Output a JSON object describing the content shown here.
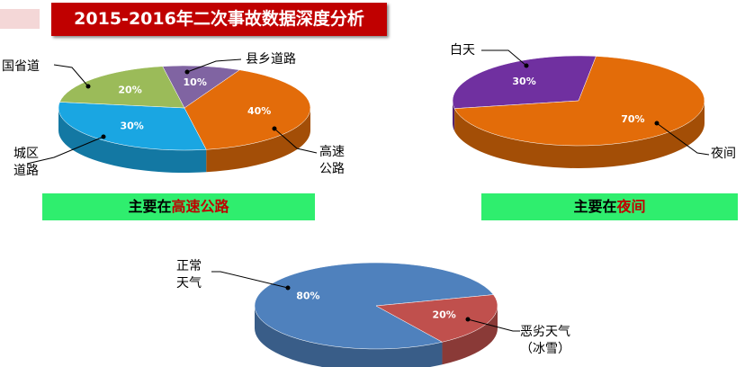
{
  "title": "2015-2016年二次事故数据深度分析",
  "chart_data": [
    {
      "type": "pie",
      "categories": [
        "城区道路",
        "国省道",
        "县乡道路",
        "高速公路"
      ],
      "values": [
        30,
        20,
        10,
        40
      ],
      "value_labels": [
        "30%",
        "20%",
        "10%",
        "40%"
      ],
      "colors": [
        "#1aa6e2",
        "#9bbb59",
        "#8064a2",
        "#e36c0a"
      ]
    },
    {
      "type": "pie",
      "categories": [
        "白天",
        "夜间"
      ],
      "values": [
        30,
        70
      ],
      "value_labels": [
        "30%",
        "70%"
      ],
      "colors": [
        "#7030a0",
        "#e36c09"
      ]
    },
    {
      "type": "pie",
      "categories": [
        "正常天气",
        "恶劣天气（冰雪）"
      ],
      "values": [
        80,
        20
      ],
      "value_labels": [
        "80%",
        "20%"
      ],
      "colors": [
        "#4f81bd",
        "#c0504d"
      ]
    }
  ],
  "captions": [
    {
      "prefix": "主要在",
      "highlight": "高速公路"
    },
    {
      "prefix": "主要在",
      "highlight": "夜间"
    }
  ]
}
